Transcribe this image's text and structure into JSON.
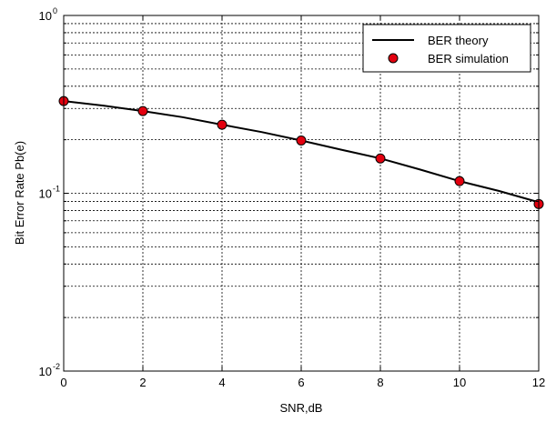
{
  "chart_data": {
    "type": "line",
    "title": "",
    "xlabel": "SNR,dB",
    "ylabel": "Bit Error Rate Pb(e)",
    "xlim": [
      0,
      12
    ],
    "ylim": [
      0.01,
      1
    ],
    "yscale": "log",
    "grid": true,
    "legend_position": "top-right",
    "x_ticks": [
      "0",
      "2",
      "4",
      "6",
      "8",
      "10",
      "12"
    ],
    "y_ticks": [
      {
        "base": "10",
        "exp": "0",
        "value": 1
      },
      {
        "base": "10",
        "exp": "-1",
        "value": 0.1
      },
      {
        "base": "10",
        "exp": "-2",
        "value": 0.01
      }
    ],
    "series": [
      {
        "name": "BER theory",
        "style": "line",
        "color": "#000000",
        "x": [
          0,
          1,
          2,
          3,
          4,
          5,
          6,
          7,
          8,
          9,
          10,
          11,
          12
        ],
        "y": [
          0.33,
          0.311,
          0.29,
          0.268,
          0.243,
          0.221,
          0.198,
          0.176,
          0.157,
          0.136,
          0.117,
          0.103,
          0.089
        ]
      },
      {
        "name": "BER simulation",
        "style": "marker",
        "color": "#e3000f",
        "x": [
          0,
          2,
          4,
          6,
          8,
          10,
          12
        ],
        "y": [
          0.33,
          0.29,
          0.243,
          0.198,
          0.157,
          0.117,
          0.087
        ]
      }
    ]
  }
}
